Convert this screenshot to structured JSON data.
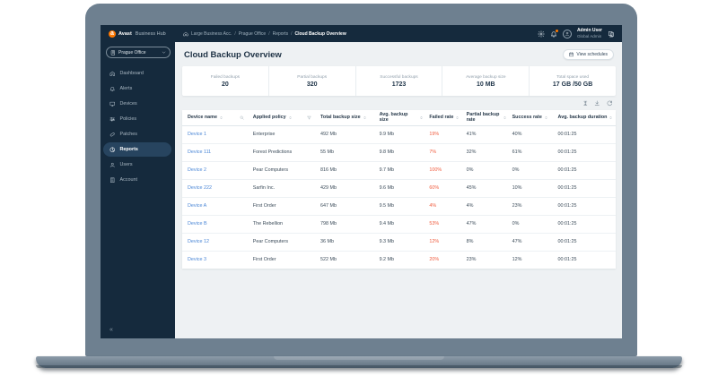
{
  "topbar": {
    "brand": {
      "bold": "Avast",
      "rest": "Business Hub"
    },
    "breadcrumb": {
      "items": [
        "Large Business Acc.",
        "Prague Office",
        "Reports"
      ],
      "current": "Cloud Backup Overview",
      "separator": "/"
    },
    "user": {
      "name": "Admin User",
      "role": "Global Admin"
    }
  },
  "sidebar": {
    "org_label": "Prague Office",
    "items": [
      {
        "label": "Dashboard",
        "icon": "home",
        "active": false
      },
      {
        "label": "Alerts",
        "icon": "bell",
        "active": false
      },
      {
        "label": "Devices",
        "icon": "monitor",
        "active": false
      },
      {
        "label": "Policies",
        "icon": "sliders",
        "active": false
      },
      {
        "label": "Patches",
        "icon": "patch",
        "active": false
      },
      {
        "label": "Reports",
        "icon": "pie-chart",
        "active": true
      },
      {
        "label": "Users",
        "icon": "user",
        "active": false
      },
      {
        "label": "Account",
        "icon": "building",
        "active": false
      }
    ],
    "collapse_glyph": "«"
  },
  "page": {
    "title": "Cloud Backup Overview",
    "view_schedules": "View schedules"
  },
  "stats": [
    {
      "label": "Failed backups",
      "value": "20"
    },
    {
      "label": "Partial backups",
      "value": "320"
    },
    {
      "label": "Successful backups",
      "value": "1723"
    },
    {
      "label": "Average backup size",
      "value": "10 MB"
    },
    {
      "label": "Total space used",
      "value": "17 GB /50 GB"
    }
  ],
  "table": {
    "columns": [
      {
        "label": "Device name",
        "sortable": true,
        "extra": "search"
      },
      {
        "label": "Applied policy",
        "sortable": true,
        "extra": "filter"
      },
      {
        "label": "Total backup size",
        "sortable": true,
        "extra": null
      },
      {
        "label": "Avg. backup size",
        "sortable": true,
        "extra": null
      },
      {
        "label": "Failed rate",
        "sortable": true,
        "extra": null
      },
      {
        "label": "Partial backup rate",
        "sortable": true,
        "extra": null
      },
      {
        "label": "Success rate",
        "sortable": true,
        "extra": null
      },
      {
        "label": "Avg. backup duration",
        "sortable": true,
        "extra": null
      }
    ],
    "rows": [
      {
        "device": "Device 1",
        "policy": "Enterprise",
        "total": "492 Mb",
        "avg": "9.9 Mb",
        "failed": "19%",
        "partial": "41%",
        "success": "40%",
        "duration": "00:01:25"
      },
      {
        "device": "Device 111",
        "policy": "Forest Predictions",
        "total": "55 Mb",
        "avg": "9.8 Mb",
        "failed": "7%",
        "partial": "32%",
        "success": "61%",
        "duration": "00:01:25"
      },
      {
        "device": "Device 2",
        "policy": "Pear Computers",
        "total": "816 Mb",
        "avg": "9.7 Mb",
        "failed": "100%",
        "partial": "0%",
        "success": "0%",
        "duration": "00:01:25"
      },
      {
        "device": "Device 222",
        "policy": "Sarfin Inc.",
        "total": "429 Mb",
        "avg": "9.6 Mb",
        "failed": "60%",
        "partial": "45%",
        "success": "10%",
        "duration": "00:01:25"
      },
      {
        "device": "Device A",
        "policy": "First Order",
        "total": "647 Mb",
        "avg": "9.5 Mb",
        "failed": "4%",
        "partial": "4%",
        "success": "23%",
        "duration": "00:01:25"
      },
      {
        "device": "Device B",
        "policy": "The Rebellion",
        "total": "798 Mb",
        "avg": "9.4 Mb",
        "failed": "53%",
        "partial": "47%",
        "success": "0%",
        "duration": "00:01:25"
      },
      {
        "device": "Device 12",
        "policy": "Pear Computers",
        "total": "36 Mb",
        "avg": "9.3 Mb",
        "failed": "12%",
        "partial": "8%",
        "success": "47%",
        "duration": "00:01:25"
      },
      {
        "device": "Device 3",
        "policy": "First Order",
        "total": "522 Mb",
        "avg": "9.2 Mb",
        "failed": "20%",
        "partial": "23%",
        "success": "12%",
        "duration": "00:01:25"
      }
    ]
  },
  "colors": {
    "dark_navy": "#152a3d",
    "accent_orange": "#ff7800",
    "link_blue": "#4a86d6",
    "failed_red": "#f05c3e",
    "main_bg": "#eef1f3"
  }
}
